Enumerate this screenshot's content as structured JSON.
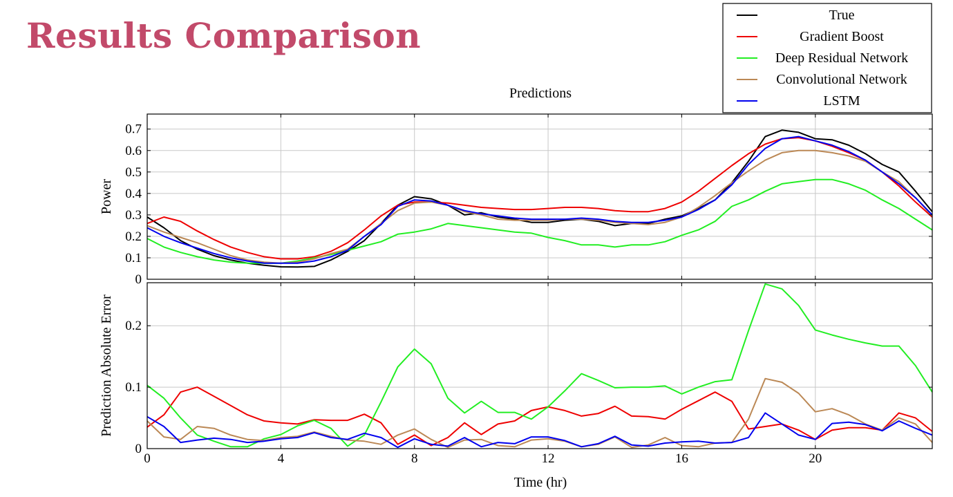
{
  "slide": {
    "title": "Results Comparison"
  },
  "chart_data": [
    {
      "type": "line",
      "title": "Predictions",
      "xlabel": "",
      "ylabel": "Power",
      "xlim": [
        0,
        23.5
      ],
      "ylim": [
        0,
        0.77
      ],
      "x_ticks": [
        0,
        4,
        8,
        12,
        16,
        20
      ],
      "y_ticks": [
        0,
        0.1,
        0.2,
        0.3,
        0.4,
        0.5,
        0.6,
        0.7
      ],
      "y_tick_labels": [
        "0",
        "0.1",
        "0.2",
        "0.3",
        "0.4",
        "0.5",
        "0.6",
        "0.7"
      ],
      "grid": true,
      "legend": "top-right",
      "x": [
        0,
        0.5,
        1,
        1.5,
        2,
        2.5,
        3,
        3.5,
        4,
        4.5,
        5,
        5.5,
        6,
        6.5,
        7,
        7.5,
        8,
        8.5,
        9,
        9.5,
        10,
        10.5,
        11,
        11.5,
        12,
        12.5,
        13,
        13.5,
        14,
        14.5,
        15,
        15.5,
        16,
        16.5,
        17,
        17.5,
        18,
        18.5,
        19,
        19.5,
        20,
        20.5,
        21,
        21.5,
        22,
        22.5,
        23,
        23.5
      ],
      "series": [
        {
          "name": "True",
          "color": "#000000",
          "values": [
            0.29,
            0.24,
            0.18,
            0.14,
            0.11,
            0.09,
            0.075,
            0.065,
            0.058,
            0.057,
            0.06,
            0.09,
            0.13,
            0.18,
            0.26,
            0.345,
            0.385,
            0.375,
            0.345,
            0.3,
            0.31,
            0.29,
            0.28,
            0.265,
            0.265,
            0.275,
            0.28,
            0.27,
            0.25,
            0.26,
            0.26,
            0.28,
            0.295,
            0.33,
            0.37,
            0.45,
            0.55,
            0.665,
            0.695,
            0.685,
            0.655,
            0.65,
            0.625,
            0.585,
            0.535,
            0.5,
            0.41,
            0.315
          ]
        },
        {
          "name": "Gradient Boost",
          "color": "#ee0000",
          "values": [
            0.26,
            0.29,
            0.27,
            0.225,
            0.185,
            0.15,
            0.125,
            0.105,
            0.095,
            0.095,
            0.105,
            0.13,
            0.17,
            0.23,
            0.295,
            0.345,
            0.36,
            0.36,
            0.355,
            0.345,
            0.335,
            0.33,
            0.325,
            0.325,
            0.33,
            0.335,
            0.335,
            0.33,
            0.32,
            0.315,
            0.315,
            0.33,
            0.36,
            0.41,
            0.47,
            0.53,
            0.585,
            0.63,
            0.655,
            0.66,
            0.645,
            0.62,
            0.59,
            0.555,
            0.5,
            0.435,
            0.36,
            0.29
          ]
        },
        {
          "name": "Deep Residual Network",
          "color": "#22ee22",
          "values": [
            0.19,
            0.15,
            0.125,
            0.105,
            0.09,
            0.08,
            0.075,
            0.075,
            0.075,
            0.085,
            0.1,
            0.115,
            0.135,
            0.155,
            0.175,
            0.21,
            0.22,
            0.235,
            0.26,
            0.25,
            0.24,
            0.23,
            0.22,
            0.215,
            0.195,
            0.18,
            0.16,
            0.16,
            0.15,
            0.16,
            0.16,
            0.175,
            0.205,
            0.23,
            0.27,
            0.34,
            0.37,
            0.41,
            0.445,
            0.455,
            0.465,
            0.465,
            0.445,
            0.415,
            0.37,
            0.33,
            0.28,
            0.23
          ]
        },
        {
          "name": "Convolutional Network",
          "color": "#bb8855",
          "values": [
            0.25,
            0.22,
            0.195,
            0.17,
            0.14,
            0.11,
            0.09,
            0.08,
            0.075,
            0.08,
            0.095,
            0.12,
            0.14,
            0.2,
            0.26,
            0.32,
            0.355,
            0.36,
            0.345,
            0.315,
            0.3,
            0.28,
            0.275,
            0.275,
            0.275,
            0.28,
            0.28,
            0.275,
            0.265,
            0.26,
            0.255,
            0.265,
            0.29,
            0.335,
            0.39,
            0.45,
            0.505,
            0.555,
            0.59,
            0.6,
            0.6,
            0.59,
            0.575,
            0.55,
            0.5,
            0.455,
            0.38,
            0.295
          ]
        },
        {
          "name": "LSTM",
          "color": "#0000ee",
          "values": [
            0.24,
            0.2,
            0.17,
            0.145,
            0.12,
            0.1,
            0.085,
            0.075,
            0.075,
            0.075,
            0.085,
            0.105,
            0.135,
            0.2,
            0.255,
            0.34,
            0.37,
            0.365,
            0.345,
            0.32,
            0.305,
            0.295,
            0.285,
            0.28,
            0.28,
            0.28,
            0.285,
            0.28,
            0.27,
            0.265,
            0.265,
            0.275,
            0.29,
            0.325,
            0.37,
            0.44,
            0.535,
            0.61,
            0.655,
            0.665,
            0.645,
            0.625,
            0.595,
            0.555,
            0.5,
            0.445,
            0.38,
            0.3
          ]
        }
      ]
    },
    {
      "type": "line",
      "title": "",
      "xlabel": "Time (hr)",
      "ylabel": "Prediction Absolute Error",
      "xlim": [
        0,
        23.5
      ],
      "ylim": [
        0,
        0.27
      ],
      "x_ticks": [
        0,
        4,
        8,
        12,
        16,
        20
      ],
      "y_ticks": [
        0,
        0.1,
        0.2
      ],
      "y_tick_labels": [
        "0",
        "0.1",
        "0.2"
      ],
      "grid": true,
      "x": [
        0,
        0.5,
        1,
        1.5,
        2,
        2.5,
        3,
        3.5,
        4,
        4.5,
        5,
        5.5,
        6,
        6.5,
        7,
        7.5,
        8,
        8.5,
        9,
        9.5,
        10,
        10.5,
        11,
        11.5,
        12,
        12.5,
        13,
        13.5,
        14,
        14.5,
        15,
        15.5,
        16,
        16.5,
        17,
        17.5,
        18,
        18.5,
        19,
        19.5,
        20,
        20.5,
        21,
        21.5,
        22,
        22.5,
        23,
        23.5
      ],
      "series": [
        {
          "name": "Gradient Boost",
          "color": "#ee0000",
          "values": [
            0.035,
            0.055,
            0.092,
            0.1,
            0.085,
            0.07,
            0.055,
            0.045,
            0.042,
            0.04,
            0.047,
            0.046,
            0.046,
            0.056,
            0.042,
            0.007,
            0.022,
            0.005,
            0.018,
            0.042,
            0.023,
            0.04,
            0.045,
            0.062,
            0.068,
            0.062,
            0.053,
            0.057,
            0.069,
            0.053,
            0.052,
            0.048,
            0.064,
            0.078,
            0.092,
            0.077,
            0.032,
            0.036,
            0.04,
            0.03,
            0.015,
            0.03,
            0.034,
            0.034,
            0.03,
            0.058,
            0.05,
            0.028
          ]
        },
        {
          "name": "Deep Residual Network",
          "color": "#22ee22",
          "values": [
            0.103,
            0.082,
            0.05,
            0.022,
            0.012,
            0.003,
            0.003,
            0.016,
            0.023,
            0.037,
            0.046,
            0.033,
            0.004,
            0.022,
            0.076,
            0.133,
            0.162,
            0.138,
            0.082,
            0.058,
            0.077,
            0.059,
            0.059,
            0.048,
            0.068,
            0.094,
            0.122,
            0.111,
            0.099,
            0.1,
            0.1,
            0.102,
            0.089,
            0.1,
            0.109,
            0.112,
            0.192,
            0.268,
            0.26,
            0.233,
            0.193,
            0.185,
            0.178,
            0.172,
            0.167,
            0.167,
            0.135,
            0.092
          ]
        },
        {
          "name": "Convolutional Network",
          "color": "#bb8855",
          "values": [
            0.045,
            0.019,
            0.015,
            0.036,
            0.033,
            0.022,
            0.015,
            0.013,
            0.018,
            0.02,
            0.027,
            0.02,
            0.014,
            0.012,
            0.007,
            0.022,
            0.032,
            0.015,
            0.002,
            0.014,
            0.015,
            0.005,
            0.003,
            0.014,
            0.016,
            0.012,
            0.003,
            0.007,
            0.019,
            0.002,
            0.006,
            0.018,
            0.005,
            0.003,
            0.009,
            0.01,
            0.048,
            0.114,
            0.108,
            0.09,
            0.06,
            0.065,
            0.055,
            0.04,
            0.03,
            0.05,
            0.04,
            0.01
          ]
        },
        {
          "name": "LSTM",
          "color": "#0000ee",
          "values": [
            0.052,
            0.036,
            0.01,
            0.014,
            0.017,
            0.015,
            0.01,
            0.012,
            0.016,
            0.018,
            0.026,
            0.018,
            0.015,
            0.025,
            0.018,
            0.002,
            0.016,
            0.007,
            0.004,
            0.018,
            0.003,
            0.01,
            0.008,
            0.019,
            0.019,
            0.013,
            0.003,
            0.008,
            0.02,
            0.006,
            0.004,
            0.009,
            0.011,
            0.012,
            0.009,
            0.01,
            0.018,
            0.058,
            0.04,
            0.022,
            0.015,
            0.041,
            0.043,
            0.039,
            0.029,
            0.045,
            0.033,
            0.022
          ]
        }
      ]
    }
  ]
}
